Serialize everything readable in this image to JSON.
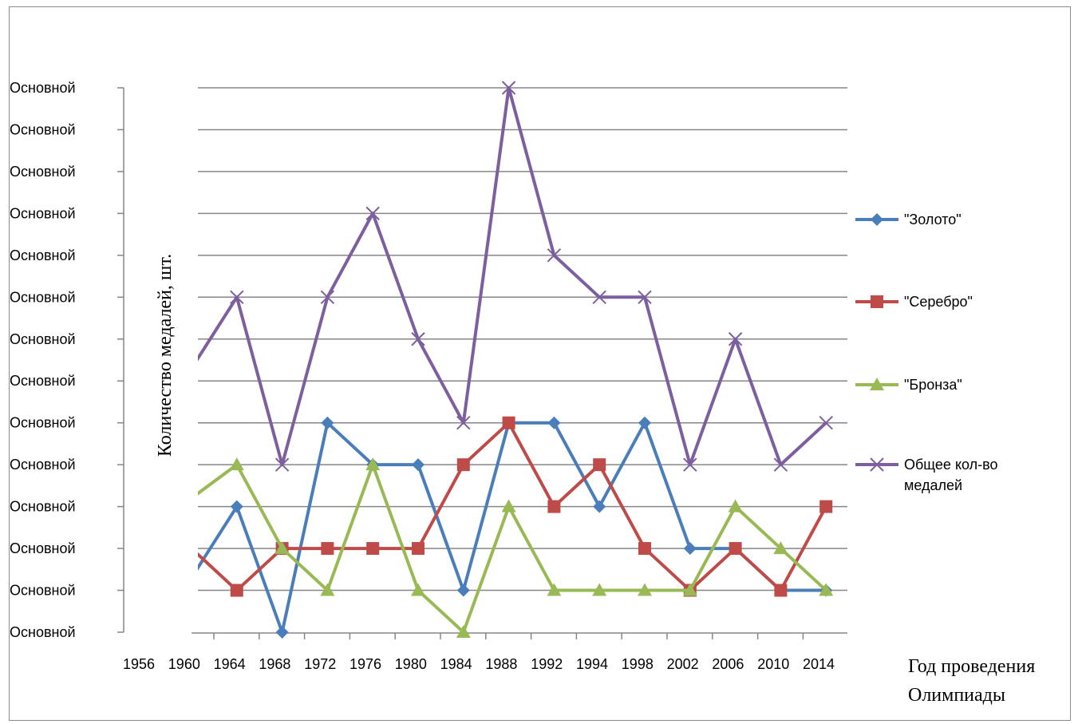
{
  "chart_data": {
    "type": "line",
    "title": "",
    "xlabel": [
      "Год проведения",
      "Олимпиады"
    ],
    "ylabel": "Количество медалей, шт.",
    "y_tick_label": "Основной",
    "y_tick_count": 14,
    "ylim": [
      0,
      13
    ],
    "grid": true,
    "legend": "right",
    "categories": [
      "1956",
      "1960",
      "1964",
      "1968",
      "1972",
      "1976",
      "1980",
      "1984",
      "1988",
      "1992",
      "1994",
      "1998",
      "2002",
      "2006",
      "2010",
      "2014"
    ],
    "series": [
      {
        "name": "\"Золото\"",
        "color": "#4a7ebb",
        "marker": "diamond",
        "values": [
          1.3,
          3,
          0,
          5,
          4,
          4,
          1,
          5,
          5,
          3,
          5,
          2,
          2,
          1,
          1,
          null
        ]
      },
      {
        "name": "\"Серебро\"",
        "color": "#be4b48",
        "marker": "square",
        "values": [
          2,
          1,
          2,
          2,
          2,
          2,
          4,
          5,
          3,
          4,
          2,
          1,
          2,
          1,
          3,
          null
        ]
      },
      {
        "name": "\"Бронза\"",
        "color": "#98b954",
        "marker": "triangle",
        "values": [
          3.2,
          4,
          2,
          1,
          4,
          1,
          0,
          3,
          1,
          1,
          1,
          1,
          3,
          2,
          1,
          null
        ]
      },
      {
        "name": "Общее кол-во медалей",
        "color": "#7d5fa0",
        "marker": "x",
        "values": [
          6.3,
          8,
          4,
          8,
          10,
          7,
          5,
          13,
          9,
          8,
          8,
          4,
          7,
          4,
          5,
          null
        ]
      }
    ]
  }
}
